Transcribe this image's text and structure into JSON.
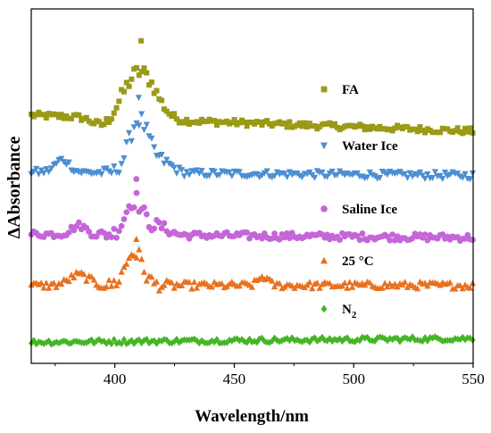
{
  "chart_data": {
    "type": "scatter",
    "title": "",
    "xlabel": "Wavelength/nm",
    "ylabel": "ΔAbsorbance",
    "xlim": [
      365,
      550
    ],
    "ylim": [
      0,
      10
    ],
    "yticks_visible": false,
    "grid": false,
    "legend_placement": "right, each entry beside its trace",
    "x_ticks": [
      {
        "value": 400,
        "label": "400"
      },
      {
        "value": 450,
        "label": "450"
      },
      {
        "value": 500,
        "label": "500"
      },
      {
        "value": 550,
        "label": "550"
      }
    ],
    "x_minor_ticks": [
      375,
      425,
      475,
      525
    ],
    "series": [
      {
        "name": "FA",
        "legend_label": "FA",
        "marker": "square",
        "color": "#9b9a16",
        "baseline": 7.0,
        "tail": 6.55,
        "noise": 0.09,
        "features": [
          {
            "center": 395,
            "amp": -0.25,
            "width": 4
          },
          {
            "center": 409,
            "amp": 1.1,
            "width": 6
          },
          {
            "center": 415,
            "amp": 0.4,
            "width": 5
          }
        ],
        "peak": {
          "x": 411,
          "y": 9.1
        }
      },
      {
        "name": "Water Ice",
        "legend_label": "Water Ice",
        "marker": "triangle-down",
        "color": "#4b8ed2",
        "baseline": 5.4,
        "tail": 5.3,
        "noise": 0.1,
        "features": [
          {
            "center": 378,
            "amp": 0.35,
            "width": 3
          },
          {
            "center": 410,
            "amp": 1.5,
            "width": 4
          },
          {
            "center": 420,
            "amp": 0.3,
            "width": 4
          }
        ],
        "peak": {
          "x": 410,
          "y": 7.5
        }
      },
      {
        "name": "Saline Ice",
        "legend_label": "Saline Ice",
        "marker": "circle",
        "color": "#c466d8",
        "baseline": 3.65,
        "tail": 3.55,
        "noise": 0.1,
        "features": [
          {
            "center": 385,
            "amp": 0.25,
            "width": 3
          },
          {
            "center": 408,
            "amp": 1.0,
            "width": 3.5
          },
          {
            "center": 418,
            "amp": 0.25,
            "width": 4
          }
        ],
        "peak": {
          "x": 409,
          "y": 5.2
        }
      },
      {
        "name": "25 °C",
        "legend_label": "25 °C",
        "marker": "triangle-up",
        "color": "#e8711f",
        "baseline": 2.2,
        "tail": 2.2,
        "noise": 0.1,
        "features": [
          {
            "center": 385,
            "amp": 0.3,
            "width": 4
          },
          {
            "center": 408,
            "amp": 0.95,
            "width": 3.5
          },
          {
            "center": 462,
            "amp": 0.25,
            "width": 2
          }
        ],
        "peak": {
          "x": 409,
          "y": 3.5
        }
      },
      {
        "name": "N2",
        "legend_label": "N",
        "legend_sub": "2",
        "marker": "diamond",
        "color": "#44b524",
        "baseline": 0.6,
        "tail": 0.7,
        "noise": 0.07,
        "features": [],
        "peak": null
      }
    ]
  }
}
